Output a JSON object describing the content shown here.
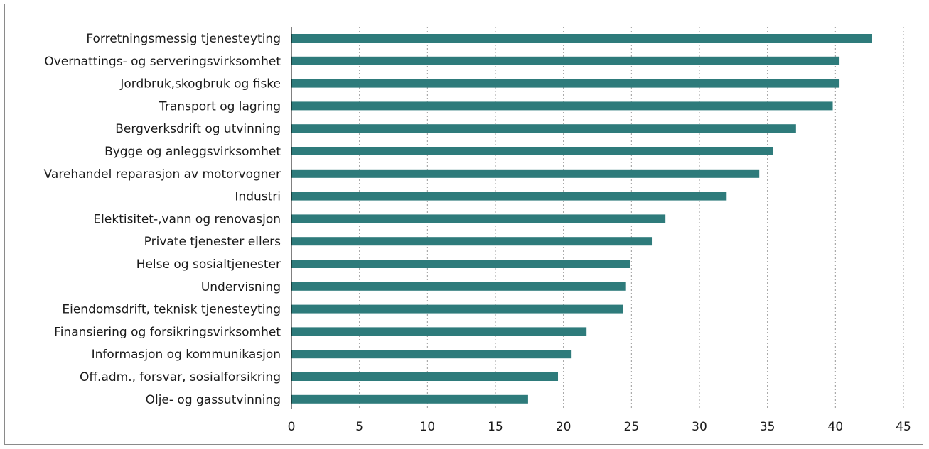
{
  "chart_data": {
    "type": "bar",
    "orientation": "horizontal",
    "categories": [
      "Forretningsmessig tjenesteyting",
      "Overnattings- og serveringsvirksomhet",
      "Jordbruk,skogbruk og fiske",
      "Transport og lagring",
      "Bergverksdrift og utvinning",
      "Bygge og anleggsvirksomhet",
      "Varehandel reparasjon av motorvogner",
      "Industri",
      "Elektisitet-,vann og renovasjon",
      "Private tjenester ellers",
      "Helse og sosialtjenester",
      "Undervisning",
      "Eiendomsdrift, teknisk tjenesteyting",
      "Finansiering og forsikringsvirksomhet",
      "Informasjon og kommunikasjon",
      "Off.adm., forsvar, sosialforsikring",
      "Olje- og gassutvinning"
    ],
    "values": [
      42.7,
      40.3,
      40.3,
      39.8,
      37.1,
      35.4,
      34.4,
      32.0,
      27.5,
      26.5,
      24.9,
      24.6,
      24.4,
      21.7,
      20.6,
      19.6,
      17.4
    ],
    "xlim": [
      0,
      45
    ],
    "xticks": [
      0,
      5,
      10,
      15,
      20,
      25,
      30,
      35,
      40,
      45
    ],
    "title": "",
    "xlabel": "",
    "ylabel": "",
    "grid": "vertical-dotted",
    "bar_color": "#2e7b7b"
  }
}
